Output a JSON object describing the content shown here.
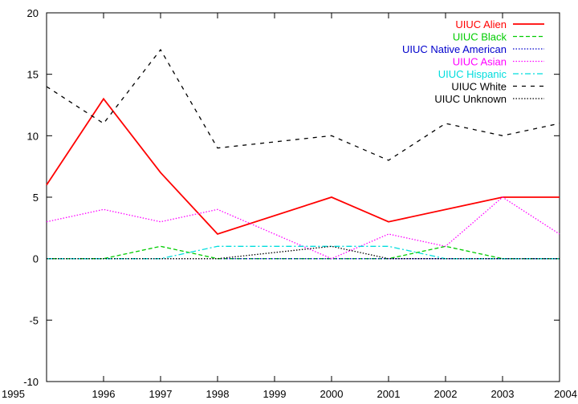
{
  "chart_data": {
    "type": "line",
    "title": "",
    "xlabel": "",
    "ylabel": "",
    "x": [
      1995,
      1996,
      1997,
      1998,
      1999,
      2000,
      2001,
      2002,
      2003,
      2004
    ],
    "xlim": [
      1995,
      2004
    ],
    "ylim": [
      -10,
      20
    ],
    "x_ticks": [
      "1995",
      "1996",
      "1997",
      "1998",
      "1999",
      "2000",
      "2001",
      "2002",
      "2003",
      "2004"
    ],
    "y_ticks": [
      "-10",
      "-5",
      "0",
      "5",
      "10",
      "15",
      "20"
    ],
    "grid": false,
    "legend_position": "top-right",
    "series": [
      {
        "name": "UIUC Alien",
        "color": "#ff0000",
        "dash": "solid",
        "x": [
          1995,
          1996,
          1997,
          1998,
          2000,
          2001,
          2003,
          2004
        ],
        "values": [
          6,
          13,
          7,
          2,
          5,
          3,
          5,
          5
        ]
      },
      {
        "name": "UIUC Black",
        "color": "#00cc00",
        "dash": "dashed",
        "x": [
          1995,
          1996,
          1997,
          1998,
          2000,
          2001,
          2002,
          2003,
          2004
        ],
        "values": [
          0,
          0,
          1,
          0,
          0,
          0,
          1,
          0,
          0
        ]
      },
      {
        "name": "UIUC Native American",
        "color": "#0000cc",
        "dash": "dotted",
        "x": [
          1995,
          1996,
          1997,
          1998,
          2000,
          2001,
          2002,
          2003,
          2004
        ],
        "values": [
          0,
          0,
          0,
          0,
          0,
          0,
          0,
          0,
          0
        ]
      },
      {
        "name": "UIUC Asian",
        "color": "#ff00ff",
        "dash": "dotted",
        "x": [
          1995,
          1996,
          1997,
          1998,
          2000,
          2001,
          2002,
          2003,
          2004
        ],
        "values": [
          3,
          4,
          3,
          4,
          0,
          2,
          1,
          5,
          2
        ]
      },
      {
        "name": "UIUC Hispanic",
        "color": "#00dddd",
        "dash": "dashdot",
        "x": [
          1995,
          1996,
          1997,
          1998,
          2000,
          2001,
          2002,
          2003,
          2004
        ],
        "values": [
          0,
          0,
          0,
          1,
          1,
          1,
          0,
          0,
          0
        ]
      },
      {
        "name": "UIUC White",
        "color": "#000000",
        "dash": "longdash",
        "x": [
          1995,
          1996,
          1997,
          1998,
          2000,
          2001,
          2002,
          2003,
          2004
        ],
        "values": [
          14,
          11,
          17,
          9,
          10,
          8,
          11,
          10,
          11
        ]
      },
      {
        "name": "UIUC Unknown",
        "color": "#000000",
        "dash": "dotted",
        "x": [
          1995,
          1996,
          1997,
          1998,
          2000,
          2001,
          2002,
          2003,
          2004
        ],
        "values": [
          0,
          0,
          0,
          0,
          1,
          0,
          0,
          0,
          0
        ]
      }
    ]
  }
}
